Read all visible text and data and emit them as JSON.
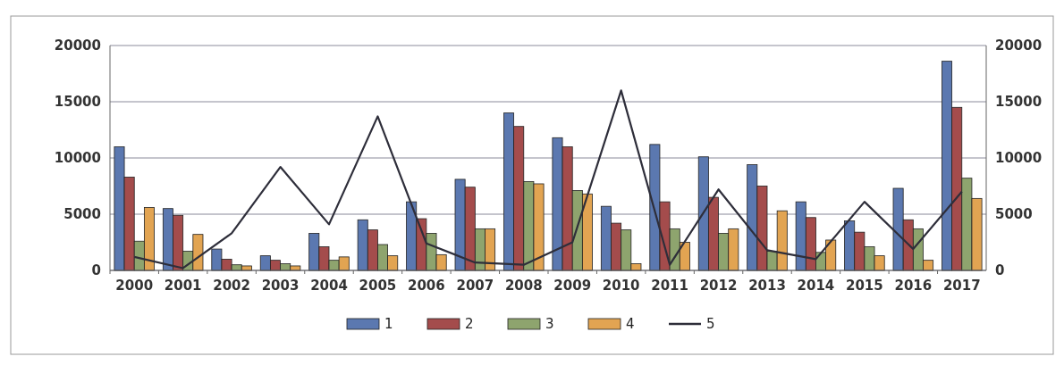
{
  "chart_data": {
    "type": "bar",
    "categories": [
      "2000",
      "2001",
      "2002",
      "2003",
      "2004",
      "2005",
      "2006",
      "2007",
      "2008",
      "2009",
      "2010",
      "2011",
      "2012",
      "2013",
      "2014",
      "2015",
      "2016",
      "2017"
    ],
    "series": [
      {
        "name": "1",
        "color": "#5b78b0",
        "values": [
          11000,
          5500,
          1900,
          1300,
          3300,
          4500,
          6100,
          8100,
          14000,
          11800,
          5700,
          11200,
          10100,
          9400,
          6100,
          4400,
          7300,
          18600
        ]
      },
      {
        "name": "2",
        "color": "#a44c4c",
        "values": [
          8300,
          4900,
          1000,
          900,
          2100,
          3600,
          4600,
          7400,
          12800,
          11000,
          4200,
          6100,
          6500,
          7500,
          4700,
          3400,
          4500,
          14500
        ]
      },
      {
        "name": "3",
        "color": "#8ea46e",
        "values": [
          2600,
          1700,
          500,
          600,
          900,
          2300,
          3300,
          3700,
          7900,
          7100,
          3600,
          3700,
          3300,
          1700,
          1600,
          2100,
          3700,
          8200
        ]
      },
      {
        "name": "4",
        "color": "#e2a452",
        "values": [
          5600,
          3200,
          400,
          400,
          1200,
          1300,
          1400,
          3700,
          7700,
          6800,
          600,
          2500,
          3700,
          5300,
          2700,
          1300,
          900,
          6400
        ]
      },
      {
        "name": "5",
        "type": "line",
        "color": "#2e2e3a",
        "values": [
          1200,
          200,
          3300,
          9200,
          4100,
          13700,
          2400,
          700,
          500,
          2500,
          16000,
          500,
          7200,
          1800,
          1000,
          6100,
          1900,
          7000
        ]
      }
    ],
    "ylim": [
      0,
      20000
    ],
    "yticks": [
      0,
      5000,
      10000,
      15000,
      20000
    ],
    "y2lim": [
      0,
      20000
    ],
    "y2ticks": [
      0,
      5000,
      10000,
      15000,
      20000
    ],
    "grid": "y",
    "legend": "bottom",
    "marker": "none"
  }
}
